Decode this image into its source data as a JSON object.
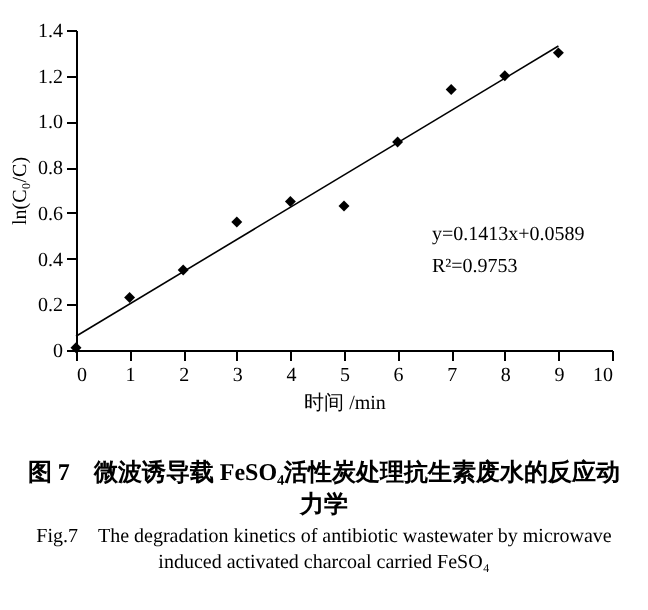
{
  "chart_data": {
    "type": "scatter",
    "title": "图 7　微波诱导载 FeSO₄活性炭处理抗生素废水的反应动力学",
    "subtitle": "Fig.7　The degradation kinetics of antibiotic wastewater by microwave induced activated charcoal carried FeSO₄",
    "xlabel": "时间 /min",
    "ylabel": "ln(C₀/C)",
    "x": [
      0,
      1,
      2,
      3,
      4,
      5,
      6,
      7,
      8,
      9
    ],
    "series": [
      {
        "color": "#000000",
        "values": [
          0.01,
          0.23,
          0.35,
          0.56,
          0.65,
          0.63,
          0.91,
          1.14,
          1.2,
          1.3
        ]
      },
      {
        "type": "line",
        "marker": "none",
        "color": "#000000",
        "x": [
          0,
          9
        ],
        "values": [
          0.06,
          1.33
        ]
      }
    ],
    "annotations": [
      "y=0.1413x+0.0589",
      "R²=0.9753"
    ],
    "xlim": [
      0,
      10
    ],
    "xticks": [
      0,
      1,
      2,
      3,
      4,
      5,
      6,
      7,
      8,
      9,
      10
    ],
    "ylim": [
      0,
      1.4
    ],
    "yticks": [
      0,
      0.2,
      0.4,
      0.6,
      0.8,
      {
        "value": 1,
        "label": "1.0"
      },
      1.2,
      1.4
    ],
    "marker": "diamond",
    "grid": false
  }
}
